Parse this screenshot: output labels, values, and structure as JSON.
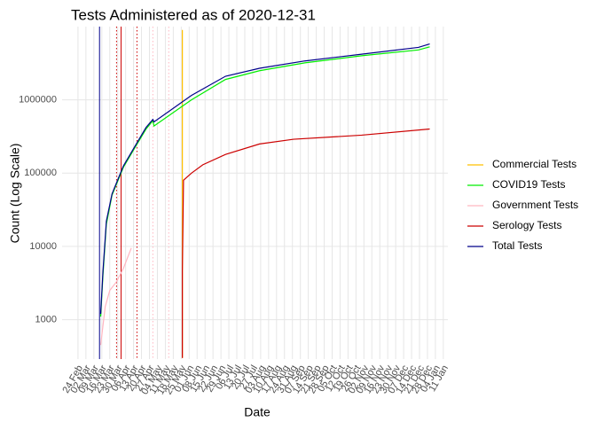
{
  "chart_data": {
    "type": "line",
    "title": "Tests Administered as of 2020-12-31",
    "x_label": "Date",
    "y_label": "Count (Log Scale)",
    "log_y": true,
    "grid": true,
    "xlim": [
      -14,
      326
    ],
    "ylim": [
      290,
      10000000
    ],
    "yticks": [
      1000,
      10000,
      100000,
      1000000
    ],
    "xticks": [
      {
        "value": 0,
        "label": "24 Feb"
      },
      {
        "value": 7,
        "label": "02 Mar"
      },
      {
        "value": 14,
        "label": "09 Mar"
      },
      {
        "value": 21,
        "label": "16 Mar"
      },
      {
        "value": 28,
        "label": "23 Mar"
      },
      {
        "value": 35,
        "label": "30 Mar"
      },
      {
        "value": 42,
        "label": "06 Apr"
      },
      {
        "value": 49,
        "label": "13 Apr"
      },
      {
        "value": 56,
        "label": "20 Apr"
      },
      {
        "value": 63,
        "label": "27 Apr"
      },
      {
        "value": 70,
        "label": "04 May"
      },
      {
        "value": 77,
        "label": "11 May"
      },
      {
        "value": 84,
        "label": "18 May"
      },
      {
        "value": 91,
        "label": "25 May"
      },
      {
        "value": 98,
        "label": "01 Jun"
      },
      {
        "value": 105,
        "label": "08 Jun"
      },
      {
        "value": 112,
        "label": "15 Jun"
      },
      {
        "value": 119,
        "label": "22 Jun"
      },
      {
        "value": 126,
        "label": "29 Jun"
      },
      {
        "value": 133,
        "label": "06 Jul"
      },
      {
        "value": 140,
        "label": "13 Jul"
      },
      {
        "value": 147,
        "label": "20 Jul"
      },
      {
        "value": 154,
        "label": "27 Jul"
      },
      {
        "value": 161,
        "label": "03 Aug"
      },
      {
        "value": 168,
        "label": "10 Aug"
      },
      {
        "value": 175,
        "label": "17 Aug"
      },
      {
        "value": 182,
        "label": "24 Aug"
      },
      {
        "value": 189,
        "label": "31 Aug"
      },
      {
        "value": 196,
        "label": "07 Sep"
      },
      {
        "value": 203,
        "label": "14 Sep"
      },
      {
        "value": 210,
        "label": "21 Sep"
      },
      {
        "value": 217,
        "label": "28 Sep"
      },
      {
        "value": 224,
        "label": "05 Oct"
      },
      {
        "value": 231,
        "label": "12 Oct"
      },
      {
        "value": 238,
        "label": "19 Oct"
      },
      {
        "value": 245,
        "label": "26 Oct"
      },
      {
        "value": 252,
        "label": "02 Nov"
      },
      {
        "value": 259,
        "label": "09 Nov"
      },
      {
        "value": 266,
        "label": "16 Nov"
      },
      {
        "value": 273,
        "label": "23 Nov"
      },
      {
        "value": 280,
        "label": "30 Nov"
      },
      {
        "value": 287,
        "label": "07 Dec"
      },
      {
        "value": 294,
        "label": "14 Dec"
      },
      {
        "value": 301,
        "label": "21 Dec"
      },
      {
        "value": 308,
        "label": "28 Dec"
      },
      {
        "value": 315,
        "label": "04 Jan"
      },
      {
        "value": 322,
        "label": "11 Jan"
      }
    ],
    "vlines": [
      {
        "x": 19,
        "color": "#00008b",
        "dotted": false
      },
      {
        "x": 34,
        "color": "#cc0000",
        "dotted": true
      },
      {
        "x": 38,
        "color": "#cc0000",
        "dotted": false
      },
      {
        "x": 52,
        "color": "#cc0000",
        "dotted": true
      },
      {
        "x": 66,
        "color": "#ffb6c1",
        "dotted": true
      },
      {
        "x": 80,
        "color": "#ffb6c1",
        "dotted": true
      }
    ],
    "series": [
      {
        "name": "Commercial Tests",
        "color": "#ffc000",
        "x": [
          92,
          92
        ],
        "values": [
          300,
          9000000
        ]
      },
      {
        "name": "COVID19 Tests",
        "color": "#00ee00",
        "x": [
          20,
          22,
          25,
          30,
          40,
          50,
          60,
          66,
          67,
          100,
          130,
          160,
          200,
          250,
          300,
          310
        ],
        "values": [
          1100,
          4000,
          20000,
          50000,
          120000,
          220000,
          400000,
          520000,
          440000,
          1000000,
          1900000,
          2500000,
          3200000,
          4000000,
          4800000,
          5300000
        ]
      },
      {
        "name": "Government Tests",
        "color": "#ffb6c1",
        "x": [
          20,
          24,
          28,
          34,
          40,
          47
        ],
        "values": [
          450,
          1500,
          2500,
          3300,
          5000,
          9500
        ]
      },
      {
        "name": "Serology Tests",
        "color": "#cc0000",
        "x": [
          92,
          92,
          93,
          100,
          110,
          130,
          160,
          190,
          250,
          310
        ],
        "values": [
          300,
          4600,
          80000,
          100000,
          130000,
          180000,
          250000,
          290000,
          330000,
          400000
        ]
      },
      {
        "name": "Total Tests",
        "color": "#00008b",
        "x": [
          20,
          22,
          25,
          30,
          40,
          50,
          60,
          66,
          67,
          100,
          130,
          160,
          200,
          250,
          300,
          310
        ],
        "values": [
          1200,
          4500,
          22000,
          52000,
          125000,
          230000,
          420000,
          540000,
          500000,
          1150000,
          2100000,
          2700000,
          3400000,
          4200000,
          5200000,
          5800000
        ]
      }
    ]
  }
}
